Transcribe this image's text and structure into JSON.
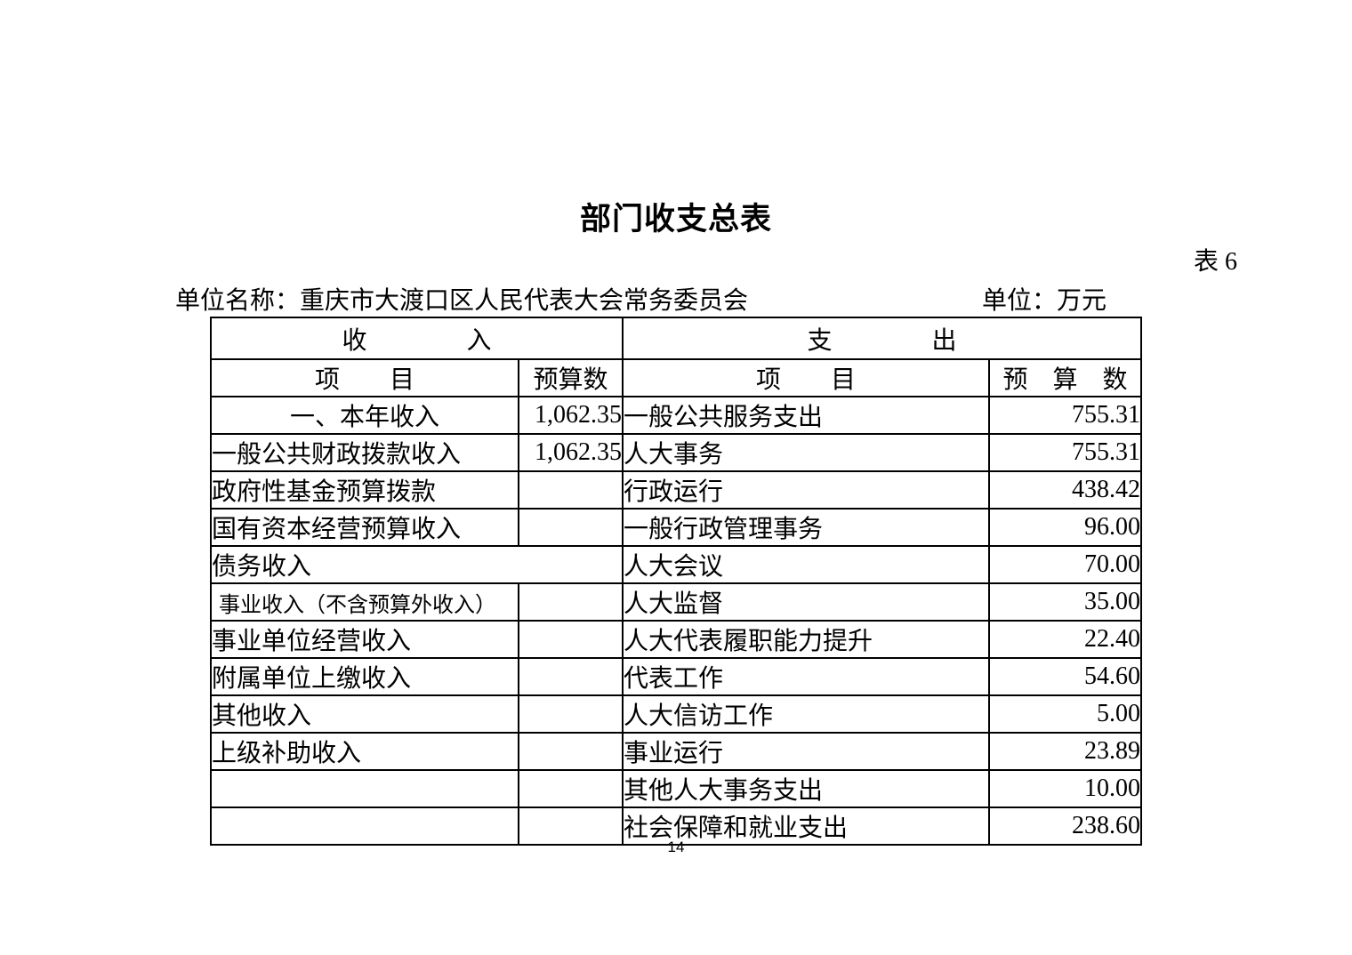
{
  "page": {
    "title": "部门收支总表",
    "table_no": "表 6",
    "unit_name": "单位名称：重庆市大渡口区人民代表大会常务委员会",
    "unit": "单位：万元",
    "page_number": "14"
  },
  "table": {
    "income_header": "收　　　　入",
    "expense_header": "支　　　　出",
    "income_item_header": "项　　目",
    "income_budget_header": "预算数",
    "expense_item_header": "项　　目",
    "expense_budget_header": "预　算　数",
    "rows": [
      {
        "income_item": "一、本年收入",
        "income_align": "center",
        "income_value": "1,062.35",
        "expense_item": "一般公共服务支出",
        "expense_indent": 0,
        "expense_value": "755.31"
      },
      {
        "income_item": "一般公共财政拨款收入",
        "income_value": "1,062.35",
        "expense_item": "人大事务",
        "expense_indent": 1,
        "expense_value": "755.31"
      },
      {
        "income_item": "政府性基金预算拨款",
        "income_value": "",
        "expense_item": "行政运行",
        "expense_indent": 2,
        "expense_value": "438.42"
      },
      {
        "income_item": "国有资本经营预算收入",
        "income_value": "",
        "expense_item": "一般行政管理事务",
        "expense_indent": 2,
        "expense_value": "96.00"
      },
      {
        "income_item": "债务收入",
        "income_colspan": 2,
        "income_value": "",
        "expense_item": "人大会议",
        "expense_indent": 2,
        "expense_value": "70.00"
      },
      {
        "income_item": "事业收入（不含预算外收入）",
        "income_value": "",
        "expense_item": "人大监督",
        "expense_indent": 2,
        "expense_value": "35.00"
      },
      {
        "income_item": "事业单位经营收入",
        "income_value": "",
        "expense_item": "人大代表履职能力提升",
        "expense_indent": 2,
        "expense_value": "22.40"
      },
      {
        "income_item": "附属单位上缴收入",
        "income_value": "",
        "expense_item": "代表工作",
        "expense_indent": 2,
        "expense_value": "54.60"
      },
      {
        "income_item": "其他收入",
        "income_value": "",
        "expense_item": "人大信访工作",
        "expense_indent": 2,
        "expense_value": "5.00"
      },
      {
        "income_item": "上级补助收入",
        "income_value": "",
        "expense_item": "事业运行",
        "expense_indent": 2,
        "expense_value": "23.89"
      },
      {
        "income_item": "",
        "income_value": "",
        "expense_item": "其他人大事务支出",
        "expense_indent": 2,
        "expense_value": "10.00"
      },
      {
        "income_item": "",
        "income_value": "",
        "expense_item": "社会保障和就业支出",
        "expense_indent": 0,
        "expense_value": "238.60"
      }
    ]
  }
}
